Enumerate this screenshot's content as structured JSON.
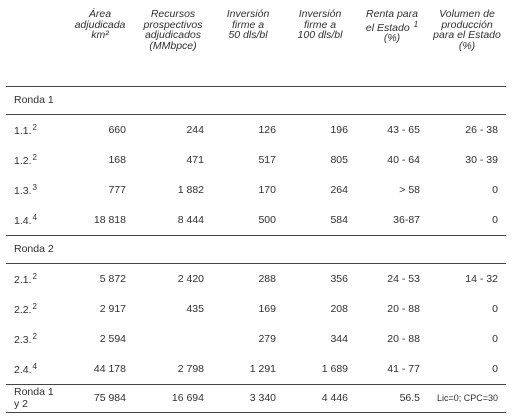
{
  "columns": [
    "",
    "Área adjudicada km²",
    "Recursos prospectivos adjudicados (MMbpce)",
    "Inversión firme a 50 dls/bl",
    "Inversión firme a 100 dls/bl",
    "Renta para el Estado ¹ (%)",
    "Volumen de producción para el Estado (%)"
  ],
  "sections": [
    {
      "title": "Ronda 1",
      "rows": [
        {
          "label": "1.1.",
          "note": "2",
          "area": "660",
          "recursos": "244",
          "inv50": "126",
          "inv100": "196",
          "renta": "43 - 65",
          "volumen": "26 - 38"
        },
        {
          "label": "1.2.",
          "note": "2",
          "area": "168",
          "recursos": "471",
          "inv50": "517",
          "inv100": "805",
          "renta": "40 - 64",
          "volumen": "30 - 39"
        },
        {
          "label": "1.3.",
          "note": "3",
          "area": "777",
          "recursos": "1 882",
          "inv50": "170",
          "inv100": "264",
          "renta": "> 58",
          "volumen": "0"
        },
        {
          "label": "1.4.",
          "note": "4",
          "area": "18 818",
          "recursos": "8 444",
          "inv50": "500",
          "inv100": "584",
          "renta": "36-87",
          "volumen": "0"
        }
      ]
    },
    {
      "title": "Ronda 2",
      "rows": [
        {
          "label": "2.1.",
          "note": "2",
          "area": "5 872",
          "recursos": "2 420",
          "inv50": "288",
          "inv100": "356",
          "renta": "24 - 53",
          "volumen": "14 - 32"
        },
        {
          "label": "2.2.",
          "note": "2",
          "area": "2 917",
          "recursos": "435",
          "inv50": "169",
          "inv100": "208",
          "renta": "20 - 88",
          "volumen": "0"
        },
        {
          "label": "2.3.",
          "note": "2",
          "area": "2 594",
          "recursos": "",
          "inv50": "279",
          "inv100": "344",
          "renta": "20 - 88",
          "volumen": "0"
        },
        {
          "label": "2.4.",
          "note": "4",
          "area": "44 178",
          "recursos": "2 798",
          "inv50": "1 291",
          "inv100": "1 689",
          "renta": "41 - 77",
          "volumen": "0"
        }
      ]
    }
  ],
  "total": {
    "label": "Ronda 1 y 2",
    "area": "75 984",
    "recursos": "16 694",
    "inv50": "3 340",
    "inv100": "4 446",
    "renta": "56.5",
    "volumen": "Lic=0; CPC=30"
  }
}
